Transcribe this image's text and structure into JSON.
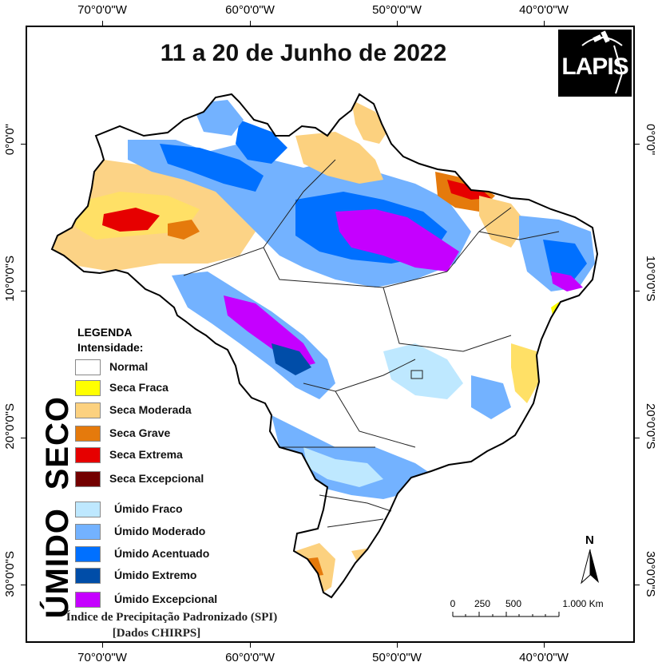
{
  "title": "11 a 20 de Junho de 2022",
  "logo": "LAPIS",
  "longitude_labels": [
    "70°0'0\"W",
    "60°0'0\"W",
    "50°0'0\"W",
    "40°0'0\"W"
  ],
  "latitude_labels": [
    "0°0'0\"",
    "10°0'0\"S",
    "20°0'0\"S",
    "30°0'0\"S"
  ],
  "legend": {
    "heading": "LEGENDA",
    "subheading": "Intensidade:",
    "group_dry": "SECO",
    "group_wet": "ÚMIDO",
    "items": [
      {
        "label": "Normal",
        "color": "#ffffff"
      },
      {
        "label": "Seca Fraca",
        "color": "#ffff00"
      },
      {
        "label": "Seca Moderada",
        "color": "#fcd17f"
      },
      {
        "label": "Seca Grave",
        "color": "#e57a0c"
      },
      {
        "label": "Seca Extrema",
        "color": "#e60000"
      },
      {
        "label": "Seca Excepcional",
        "color": "#730000"
      },
      {
        "label": "Úmido Fraco",
        "color": "#bee8ff"
      },
      {
        "label": "Úmido Moderado",
        "color": "#73b2ff"
      },
      {
        "label": "Úmido Acentuado",
        "color": "#0070ff"
      },
      {
        "label": "Úmido Extremo",
        "color": "#004da8"
      },
      {
        "label": "Úmido Excepcional",
        "color": "#c500ff"
      }
    ]
  },
  "footer": {
    "line1": "Índice de Precipitação Padronizado (SPI)",
    "line2": "[Dados CHIRPS]"
  },
  "scale_bar": {
    "labels": [
      "0",
      "250",
      "500",
      "1.000 Km"
    ]
  },
  "north_label": "N"
}
